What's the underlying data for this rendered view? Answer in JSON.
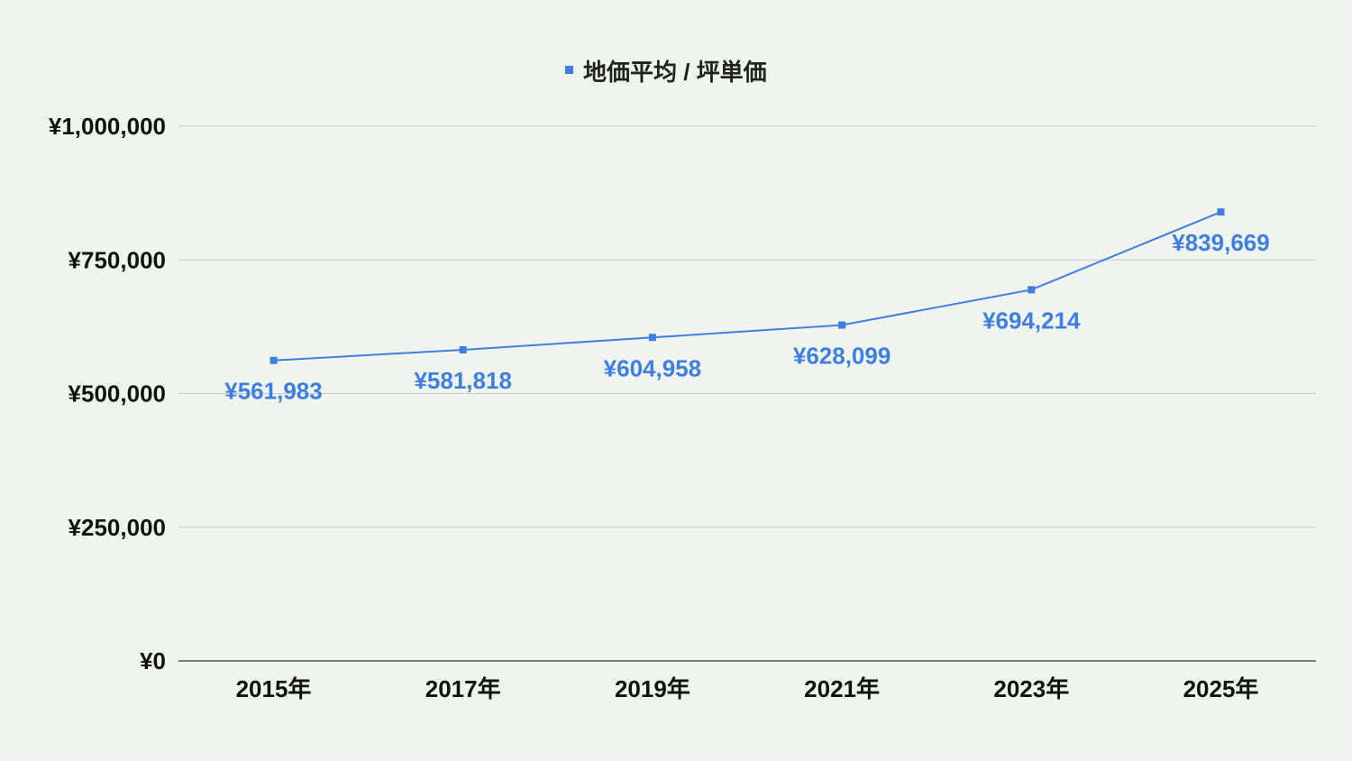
{
  "chart_data": {
    "type": "line",
    "legend": "地価平均 / 坪単価",
    "legend_position": "top-center",
    "categories": [
      "2015年",
      "2017年",
      "2019年",
      "2021年",
      "2023年",
      "2025年"
    ],
    "series": [
      {
        "name": "地価平均 / 坪単価",
        "values": [
          561983,
          581818,
          604958,
          628099,
          694214,
          839669
        ],
        "labels": [
          "¥561,983",
          "¥581,818",
          "¥604,958",
          "¥628,099",
          "¥694,214",
          "¥839,669"
        ]
      }
    ],
    "ylim": [
      0,
      1000000
    ],
    "yticks": [
      0,
      250000,
      500000,
      750000,
      1000000
    ],
    "ytick_labels": [
      "¥0",
      "¥250,000",
      "¥500,000",
      "¥750,000",
      "¥1,000,000"
    ],
    "grid": true,
    "colors": {
      "series": "#3d7fe0",
      "background": "#f1f4ee",
      "grid": "#c8cac6",
      "text": "#111111"
    }
  }
}
